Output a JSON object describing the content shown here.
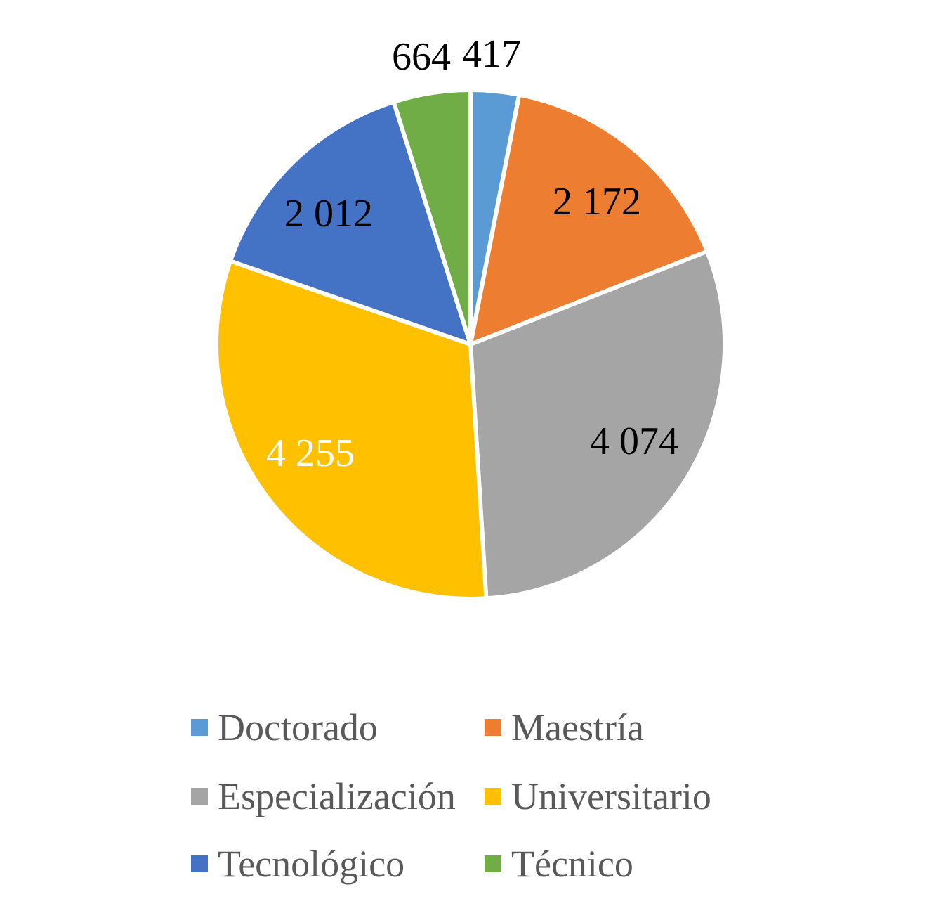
{
  "chart_data": {
    "type": "pie",
    "categories": [
      "Doctorado",
      "Maestría",
      "Especialización",
      "Universitario",
      "Tecnológico",
      "Técnico"
    ],
    "values": [
      417,
      2172,
      4074,
      4255,
      2012,
      664
    ],
    "data_labels": [
      "417",
      "2 172",
      "4 074",
      "4 255",
      "2 012",
      "664"
    ],
    "colors": [
      "#5B9BD5",
      "#ED7D31",
      "#A5A5A5",
      "#FFC000",
      "#4472C4",
      "#70AD47"
    ],
    "label_colors": [
      "#000000",
      "#000000",
      "#000000",
      "#FFFFFF",
      "#000000",
      "#000000"
    ],
    "start_angle": "12 o'clock",
    "direction": "clockwise",
    "legend": {
      "position": "bottom",
      "columns": 2
    }
  }
}
